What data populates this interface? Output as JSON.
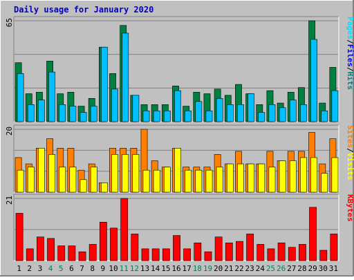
{
  "chart_data": {
    "type": "bar",
    "title": "Daily usage for January 2020",
    "x": [
      "1",
      "2",
      "3",
      "4",
      "5",
      "6",
      "7",
      "8",
      "9",
      "10",
      "11",
      "12",
      "13",
      "14",
      "15",
      "16",
      "17",
      "18",
      "19",
      "20",
      "21",
      "22",
      "23",
      "24",
      "25",
      "26",
      "27",
      "28",
      "29",
      "30",
      "31"
    ],
    "weekend_days": [
      "4",
      "5",
      "11",
      "12",
      "18",
      "19",
      "25",
      "26"
    ],
    "panels": [
      {
        "id": "hits",
        "ymax_label": "65",
        "ymax": 65,
        "legend": [
          "Pages",
          "Files",
          "Hits"
        ],
        "series": [
          {
            "name": "Hits",
            "color": "#008040",
            "values": [
              38,
              18,
              19,
              39,
              18,
              19,
              10,
              15,
              48,
              31,
              62,
              17,
              11,
              11,
              11,
              23,
              10,
              19,
              18,
              21,
              17,
              24,
              18,
              11,
              20,
              12,
              19,
              22,
              65,
              12,
              35
            ]
          },
          {
            "name": "Files",
            "color": "#00C0FF",
            "values": [
              31,
              11,
              14,
              32,
              11,
              10,
              6,
              10,
              48,
              21,
              57,
              17,
              7,
              7,
              7,
              20,
              7,
              13,
              7,
              15,
              11,
              11,
              18,
              6,
              11,
              9,
              14,
              11,
              53,
              7,
              20
            ]
          },
          {
            "name": "Pages",
            "color": "#00E0FF",
            "values": [
              0,
              0,
              0,
              0,
              0,
              0,
              0,
              0,
              0,
              0,
              0,
              0,
              0,
              0,
              0,
              0,
              0,
              0,
              0,
              0,
              0,
              0,
              0,
              0,
              0,
              0,
              0,
              0,
              0,
              0,
              0
            ]
          }
        ]
      },
      {
        "id": "visits",
        "ymax_label": "20",
        "ymax": 20,
        "legend": [
          "Sites",
          "Visits"
        ],
        "series": [
          {
            "name": "Visits",
            "color": "#FF8000",
            "values": [
              11,
              9,
              14,
              17,
              14,
              14,
              7,
              9,
              3,
              14,
              14,
              14,
              20,
              10,
              8,
              14,
              8,
              8,
              8,
              12,
              9,
              13,
              9,
              9,
              13,
              10,
              13,
              13,
              19,
              9,
              17
            ]
          },
          {
            "name": "Sites",
            "color": "#FFFF00",
            "values": [
              7,
              8,
              14,
              12,
              8,
              8,
              4,
              8,
              3,
              12,
              12,
              12,
              7,
              7,
              8,
              14,
              7,
              7,
              7,
              8,
              9,
              9,
              9,
              9,
              8,
              10,
              10,
              11,
              11,
              6,
              11
            ]
          }
        ]
      },
      {
        "id": "kbytes",
        "ymax_label": "21",
        "ymax": 21,
        "legend": [
          "KBytes"
        ],
        "series": [
          {
            "name": "KBytes",
            "color": "#FF0000",
            "values": [
              16,
              4,
              8,
              7.5,
              5,
              5,
              3,
              5.5,
              13,
              11,
              21,
              9,
              4,
              4,
              4,
              8.5,
              4,
              6,
              3,
              8,
              6,
              6.5,
              9,
              5.5,
              4,
              6,
              4.5,
              5.5,
              18,
              3.5,
              9
            ]
          }
        ]
      }
    ]
  },
  "colors": {
    "background": "#C0C0C0",
    "border_light": "#ffffff",
    "border_dark": "#808080",
    "gridline": "#808080",
    "title_text": "#0000C0",
    "weekday_label": "#000000",
    "weekend_label": "#00805C",
    "legend_sep": "#000000"
  }
}
